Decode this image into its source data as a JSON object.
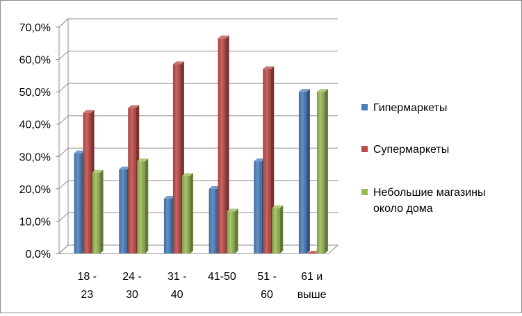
{
  "chart_data": {
    "type": "bar",
    "title": "",
    "xlabel": "",
    "ylabel": "",
    "ylim": [
      0,
      0.7
    ],
    "y_ticks": [
      "0,0%",
      "10,0%",
      "20,0%",
      "30,0%",
      "40,0%",
      "50,0%",
      "60,0%",
      "70,0%"
    ],
    "categories": [
      [
        "18 -",
        "23"
      ],
      [
        "24 -",
        "30"
      ],
      [
        "31 -",
        "40"
      ],
      [
        "41-50",
        ""
      ],
      [
        "51 -",
        "60"
      ],
      [
        "61 и",
        "выше"
      ]
    ],
    "series": [
      {
        "name": "Гипермаркеты",
        "color": "#4a7ebb",
        "values": [
          0.31,
          0.26,
          0.17,
          0.2,
          0.285,
          0.5
        ]
      },
      {
        "name": "Супермаркеты",
        "color": "#be4b48",
        "values": [
          0.435,
          0.45,
          0.585,
          0.665,
          0.57,
          0.0
        ]
      },
      {
        "name": "Небольшие магазины около дома",
        "legend_lines": [
          "Небольшие магазины",
          "около дома"
        ],
        "color": "#98b954",
        "values": [
          0.25,
          0.285,
          0.24,
          0.13,
          0.14,
          0.5
        ]
      }
    ],
    "grid": true,
    "legend": "right",
    "style": "3d-bars"
  }
}
